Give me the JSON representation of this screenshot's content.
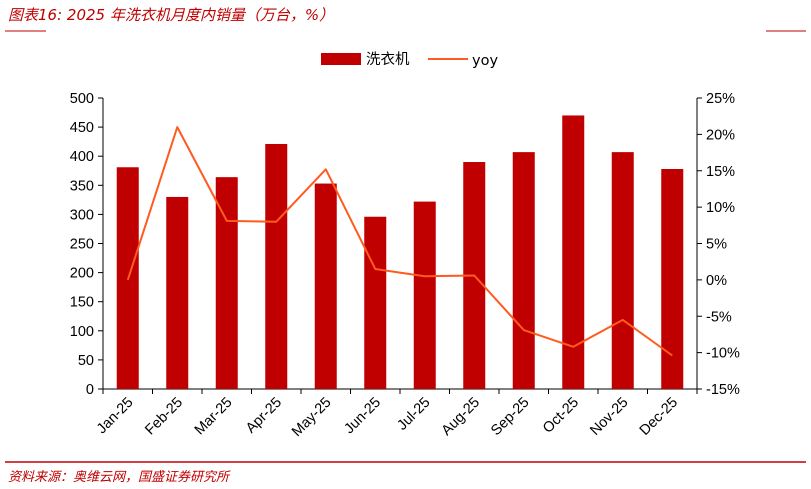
{
  "title": "图表16: 2025 年洗衣机月度内销量（万台，%）",
  "source": "资料来源：奥维云网，国盛证券研究所",
  "colors": {
    "bar": "#C00000",
    "line": "#FF5A1F",
    "accent": "#C00000",
    "axis": "#000000"
  },
  "chart_data": {
    "type": "bar",
    "categories": [
      "Jan-25",
      "Feb-25",
      "Mar-25",
      "Apr-25",
      "May-25",
      "Jun-25",
      "Jul-25",
      "Aug-25",
      "Sep-25",
      "Oct-25",
      "Nov-25",
      "Dec-25"
    ],
    "series": [
      {
        "name": "洗衣机",
        "type": "bar",
        "axis": "left",
        "values": [
          381,
          330,
          364,
          421,
          353,
          296,
          322,
          390,
          407,
          470,
          407,
          378
        ]
      },
      {
        "name": "yoy",
        "type": "line",
        "axis": "right",
        "values": [
          0.0,
          21.0,
          8.1,
          8.0,
          15.2,
          1.5,
          0.5,
          0.6,
          -6.9,
          -9.2,
          -5.5,
          -10.4
        ]
      }
    ],
    "y_left": {
      "min": 0,
      "max": 500,
      "step": 50,
      "tick_labels": [
        "0",
        "50",
        "100",
        "150",
        "200",
        "250",
        "300",
        "350",
        "400",
        "450",
        "500"
      ]
    },
    "y_right": {
      "min": -15,
      "max": 25,
      "step": 5,
      "tick_labels": [
        "-15%",
        "-10%",
        "-5%",
        "0%",
        "5%",
        "10%",
        "15%",
        "20%",
        "25%"
      ]
    },
    "legend_position": "top-center",
    "grid": false
  }
}
